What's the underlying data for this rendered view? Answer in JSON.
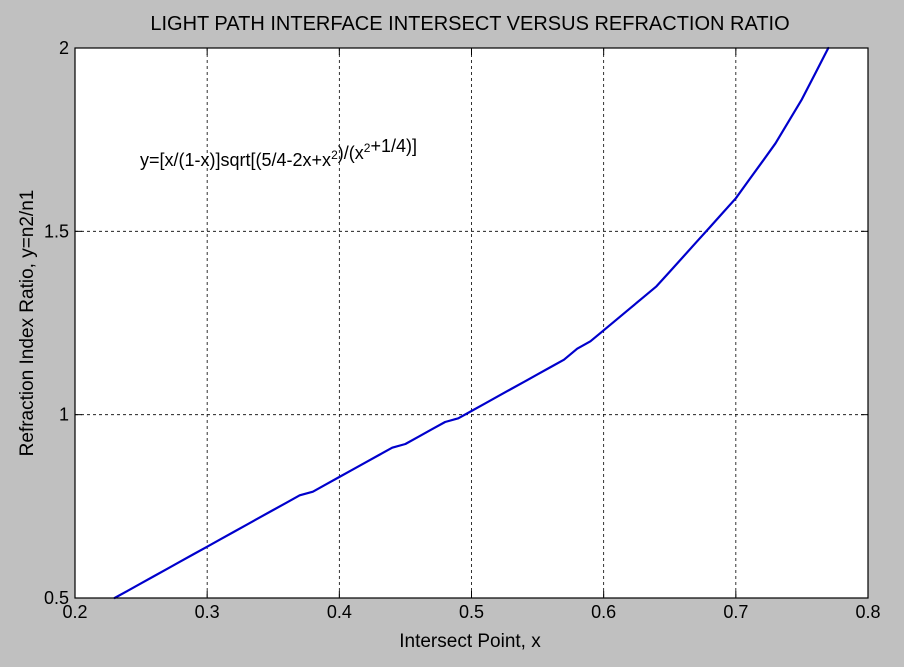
{
  "chart_data": {
    "type": "line",
    "title": "LIGHT PATH INTERFACE INTERSECT VERSUS REFRACTION RATIO",
    "xlabel": "Intersect Point, x",
    "ylabel": "Refraction Index Ratio, y=n2/n1",
    "xlim": [
      0.2,
      0.8
    ],
    "ylim": [
      0.5,
      2
    ],
    "x_ticks": [
      "0.2",
      "0.3",
      "0.4",
      "0.5",
      "0.6",
      "0.7",
      "0.8"
    ],
    "y_ticks": [
      "0.5",
      "1",
      "1.5",
      "2"
    ],
    "grid": true,
    "grid_style": "dashed",
    "background": "#c0c0c0",
    "plot_background": "#ffffff",
    "line_color": "#0000cc",
    "annotation": {
      "parts": [
        {
          "text": "y=[x/(1-x)]sqrt[(5/4-2x+x",
          "sup": false
        },
        {
          "text": "2",
          "sup": true
        },
        {
          "text": ")/(x",
          "sup": false
        },
        {
          "text": "2",
          "sup": true
        },
        {
          "text": "+1/4)]",
          "sup": false
        }
      ]
    },
    "series": [
      {
        "x": [
          0.23,
          0.24,
          0.25,
          0.26,
          0.27,
          0.28,
          0.29,
          0.3,
          0.31,
          0.32,
          0.33,
          0.34,
          0.35,
          0.36,
          0.37,
          0.38,
          0.39,
          0.4,
          0.41,
          0.42,
          0.43,
          0.44,
          0.45,
          0.46,
          0.47,
          0.48,
          0.49,
          0.5,
          0.51,
          0.52,
          0.53,
          0.54,
          0.55,
          0.56,
          0.57,
          0.58,
          0.59,
          0.6,
          0.61,
          0.62,
          0.63,
          0.64,
          0.65,
          0.66,
          0.67,
          0.68,
          0.69,
          0.7,
          0.71,
          0.72,
          0.73,
          0.74,
          0.75,
          0.76,
          0.77
        ],
        "y": [
          0.5,
          0.52,
          0.54,
          0.56,
          0.58,
          0.6,
          0.62,
          0.64,
          0.66,
          0.68,
          0.7,
          0.72,
          0.74,
          0.76,
          0.78,
          0.79,
          0.81,
          0.83,
          0.85,
          0.87,
          0.89,
          0.91,
          0.92,
          0.94,
          0.96,
          0.98,
          0.99,
          1.01,
          1.03,
          1.05,
          1.07,
          1.09,
          1.11,
          1.13,
          1.15,
          1.18,
          1.2,
          1.23,
          1.26,
          1.29,
          1.32,
          1.35,
          1.39,
          1.43,
          1.47,
          1.51,
          1.55,
          1.59,
          1.64,
          1.69,
          1.74,
          1.8,
          1.86,
          1.93,
          2.0
        ]
      }
    ]
  }
}
